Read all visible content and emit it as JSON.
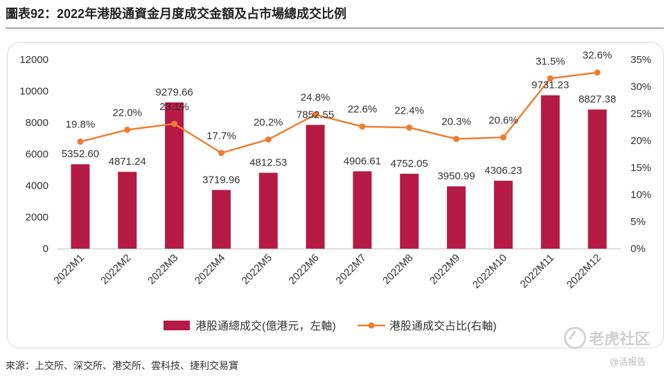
{
  "header": {
    "title": "圖表92：2022年港股通資金月度成交金額及占市場總成交比例"
  },
  "footer": {
    "source": "來源：上交所、深交所、港交所、雲科技、捷利交易寶"
  },
  "watermark": {
    "text": "老虎社区",
    "sub": "@活报告"
  },
  "colors": {
    "bar": "#B51A45",
    "line": "#ED7D31",
    "axis_text": "#333333",
    "baseline": "#bfbfbf"
  },
  "chart_data": {
    "type": "bar",
    "title": "圖表92：2022年港股通資金月度成交金額及占市場總成交比例",
    "categories": [
      "2022M1",
      "2022M2",
      "2022M3",
      "2022M4",
      "2022M5",
      "2022M6",
      "2022M7",
      "2022M8",
      "2022M9",
      "2022M10",
      "2022M11",
      "2022M12"
    ],
    "series": [
      {
        "name": "港股通總成交(億港元，左軸)",
        "type": "bar",
        "axis": "left",
        "values": [
          5352.6,
          4871.24,
          9279.66,
          3719.96,
          4812.53,
          7852.55,
          4906.61,
          4752.05,
          3950.99,
          4306.23,
          9731.23,
          8827.38
        ],
        "labels": [
          "5352.60",
          "4871.24",
          "9279.66",
          "3719.96",
          "4812.53",
          "7852.55",
          "4906.61",
          "4752.05",
          "3950.99",
          "4306.23",
          "9731.23",
          "8827.38"
        ]
      },
      {
        "name": "港股通成交占比(右軸)",
        "type": "line",
        "axis": "right",
        "values": [
          19.8,
          22.0,
          23.1,
          17.7,
          20.2,
          24.8,
          22.6,
          22.4,
          20.3,
          20.6,
          31.5,
          32.6
        ],
        "labels": [
          "19.8%",
          "22.0%",
          "23.1%",
          "17.7%",
          "20.2%",
          "24.8%",
          "22.6%",
          "22.4%",
          "20.3%",
          "20.6%",
          "31.5%",
          "32.6%"
        ]
      }
    ],
    "y_left": {
      "min": 0,
      "max": 12000,
      "ticks": [
        "0",
        "2000",
        "4000",
        "6000",
        "8000",
        "10000",
        "12000"
      ]
    },
    "y_right": {
      "min": 0,
      "max": 35,
      "ticks": [
        "0%",
        "5%",
        "10%",
        "15%",
        "20%",
        "25%",
        "30%",
        "35%"
      ]
    },
    "legend_position": "bottom"
  }
}
